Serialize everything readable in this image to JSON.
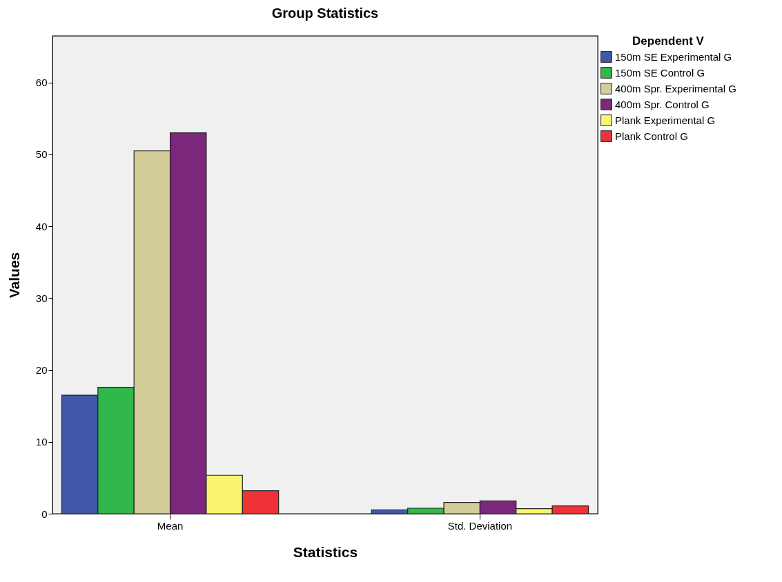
{
  "chart_data": {
    "type": "bar",
    "title": "Group Statistics",
    "xlabel": "Statistics",
    "ylabel": "Values",
    "legend_title": "Dependent V",
    "categories": [
      "Mean",
      "Std. Deviation"
    ],
    "series": [
      {
        "name": "150m SE Experimental G",
        "color": "#3f59a8",
        "values": [
          16.5,
          0.55
        ]
      },
      {
        "name": "150m SE Control G",
        "color": "#31b84a",
        "values": [
          17.6,
          0.77
        ]
      },
      {
        "name": "400m Spr. Experimental G",
        "color": "#d3ce97",
        "values": [
          50.5,
          1.57
        ]
      },
      {
        "name": "400m Spr. Control G",
        "color": "#7b287c",
        "values": [
          53.0,
          1.8
        ]
      },
      {
        "name": "Plank Experimental G",
        "color": "#faf570",
        "values": [
          5.35,
          0.71
        ]
      },
      {
        "name": "Plank Control G",
        "color": "#ee3237",
        "values": [
          3.2,
          1.09
        ]
      }
    ],
    "ylim": [
      0,
      66.5
    ],
    "yticks": [
      0,
      10,
      20,
      30,
      40,
      50,
      60
    ],
    "grid": false,
    "legend": "top right"
  }
}
